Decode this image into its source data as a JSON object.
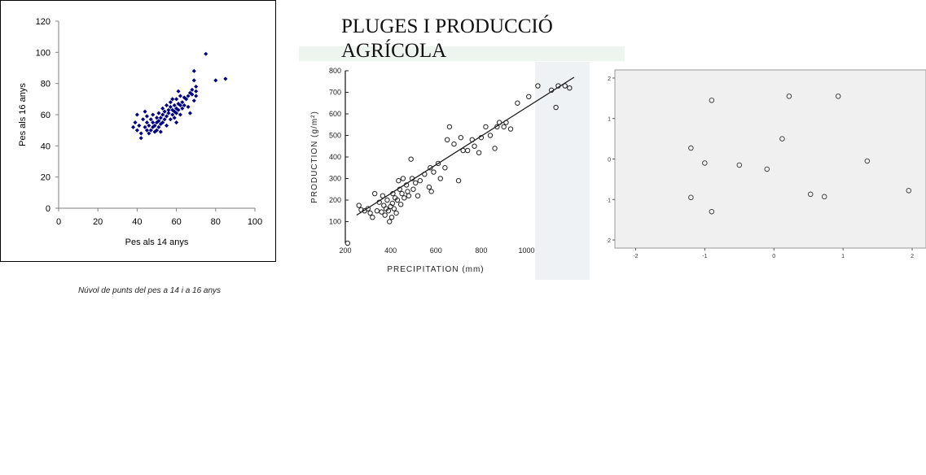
{
  "title": {
    "line1": "PLUGES I PRODUCCIÓ",
    "line2": "AGRÍCOLA"
  },
  "chart_data": [
    {
      "type": "scatter",
      "xlabel": "Pes als 14 anys",
      "ylabel": "Pes als 16 anys",
      "caption": "Núvol de punts del pes a 14 i a 16 anys",
      "xlim": [
        0,
        100
      ],
      "ylim": [
        0,
        120
      ],
      "xticks": [
        "0",
        "20",
        "40",
        "60",
        "80",
        "100"
      ],
      "yticks": [
        "0",
        "20",
        "40",
        "60",
        "80",
        "100",
        "120"
      ],
      "marker_color": "#000080",
      "points": [
        [
          38,
          52
        ],
        [
          39,
          55
        ],
        [
          40,
          50
        ],
        [
          40,
          60
        ],
        [
          41,
          53
        ],
        [
          42,
          45
        ],
        [
          42,
          48
        ],
        [
          43,
          57
        ],
        [
          44,
          52
        ],
        [
          44,
          62
        ],
        [
          45,
          50
        ],
        [
          45,
          55
        ],
        [
          45,
          59
        ],
        [
          46,
          48
        ],
        [
          46,
          53
        ],
        [
          47,
          50
        ],
        [
          47,
          57
        ],
        [
          48,
          52
        ],
        [
          48,
          55
        ],
        [
          48,
          60
        ],
        [
          49,
          49
        ],
        [
          49,
          53
        ],
        [
          50,
          50
        ],
        [
          50,
          55
        ],
        [
          50,
          58
        ],
        [
          51,
          52
        ],
        [
          51,
          56
        ],
        [
          51,
          61
        ],
        [
          52,
          49
        ],
        [
          52,
          54
        ],
        [
          52,
          58
        ],
        [
          53,
          55
        ],
        [
          53,
          60
        ],
        [
          53,
          64
        ],
        [
          54,
          57
        ],
        [
          54,
          62
        ],
        [
          55,
          53
        ],
        [
          55,
          59
        ],
        [
          55,
          66
        ],
        [
          56,
          61
        ],
        [
          56,
          63
        ],
        [
          57,
          57
        ],
        [
          57,
          65
        ],
        [
          57,
          68
        ],
        [
          58,
          60
        ],
        [
          58,
          63
        ],
        [
          58,
          70
        ],
        [
          59,
          58
        ],
        [
          59,
          62
        ],
        [
          59,
          66
        ],
        [
          60,
          55
        ],
        [
          60,
          61
        ],
        [
          60,
          64
        ],
        [
          60,
          70
        ],
        [
          61,
          63
        ],
        [
          61,
          67
        ],
        [
          61,
          75
        ],
        [
          62,
          60
        ],
        [
          62,
          66
        ],
        [
          62,
          72
        ],
        [
          63,
          64
        ],
        [
          63,
          68
        ],
        [
          64,
          66
        ],
        [
          64,
          71
        ],
        [
          65,
          70
        ],
        [
          66,
          65
        ],
        [
          66,
          72
        ],
        [
          67,
          61
        ],
        [
          67,
          74
        ],
        [
          68,
          73
        ],
        [
          68,
          76
        ],
        [
          69,
          69
        ],
        [
          69,
          82
        ],
        [
          70,
          75
        ],
        [
          70,
          78
        ],
        [
          69,
          88
        ],
        [
          75,
          99
        ],
        [
          80,
          82
        ],
        [
          85,
          83
        ],
        [
          70,
          72
        ]
      ]
    },
    {
      "type": "scatter",
      "xlabel": "PRECIPITATION (mm)",
      "ylabel": "PRODUCTION (g/m²)",
      "xlim": [
        200,
        1250
      ],
      "ylim": [
        0,
        800
      ],
      "xticks": [
        "200",
        "400",
        "600",
        "800",
        "1000"
      ],
      "yticks": [
        "100",
        "200",
        "300",
        "400",
        "500",
        "600",
        "700",
        "800"
      ],
      "trendline": [
        [
          250,
          130
        ],
        [
          1210,
          770
        ]
      ],
      "points": [
        [
          260,
          175
        ],
        [
          270,
          155
        ],
        [
          285,
          150
        ],
        [
          300,
          160
        ],
        [
          310,
          140
        ],
        [
          320,
          120
        ],
        [
          330,
          230
        ],
        [
          340,
          150
        ],
        [
          350,
          190
        ],
        [
          360,
          145
        ],
        [
          365,
          220
        ],
        [
          370,
          175
        ],
        [
          375,
          130
        ],
        [
          380,
          160
        ],
        [
          385,
          200
        ],
        [
          390,
          150
        ],
        [
          395,
          100
        ],
        [
          400,
          170
        ],
        [
          405,
          120
        ],
        [
          408,
          185
        ],
        [
          410,
          230
        ],
        [
          415,
          160
        ],
        [
          420,
          210
        ],
        [
          425,
          140
        ],
        [
          430,
          200
        ],
        [
          435,
          290
        ],
        [
          440,
          250
        ],
        [
          445,
          180
        ],
        [
          450,
          230
        ],
        [
          455,
          300
        ],
        [
          460,
          210
        ],
        [
          470,
          270
        ],
        [
          475,
          240
        ],
        [
          480,
          220
        ],
        [
          490,
          390
        ],
        [
          495,
          300
        ],
        [
          500,
          250
        ],
        [
          510,
          280
        ],
        [
          520,
          220
        ],
        [
          530,
          290
        ],
        [
          550,
          320
        ],
        [
          570,
          260
        ],
        [
          575,
          350
        ],
        [
          580,
          240
        ],
        [
          590,
          330
        ],
        [
          610,
          370
        ],
        [
          620,
          300
        ],
        [
          640,
          350
        ],
        [
          650,
          480
        ],
        [
          660,
          540
        ],
        [
          680,
          460
        ],
        [
          700,
          290
        ],
        [
          710,
          490
        ],
        [
          720,
          430
        ],
        [
          740,
          430
        ],
        [
          760,
          480
        ],
        [
          770,
          450
        ],
        [
          790,
          420
        ],
        [
          800,
          490
        ],
        [
          820,
          540
        ],
        [
          840,
          500
        ],
        [
          860,
          440
        ],
        [
          870,
          540
        ],
        [
          880,
          560
        ],
        [
          900,
          540
        ],
        [
          910,
          560
        ],
        [
          930,
          530
        ],
        [
          960,
          650
        ],
        [
          1010,
          680
        ],
        [
          1050,
          730
        ],
        [
          1110,
          710
        ],
        [
          1130,
          630
        ],
        [
          1140,
          730
        ],
        [
          1170,
          730
        ],
        [
          1190,
          720
        ],
        [
          210,
          0
        ]
      ]
    },
    {
      "type": "scatter",
      "xlim": [
        -2.3,
        2.2
      ],
      "ylim": [
        -2.2,
        2.2
      ],
      "xticks": [
        "-2",
        "-1",
        "0",
        "1",
        "2"
      ],
      "yticks": [
        "2",
        "1",
        "0",
        "-1",
        "-2"
      ],
      "points": [
        [
          -1.2,
          0.27
        ],
        [
          -1.2,
          -0.95
        ],
        [
          -1.0,
          -0.1
        ],
        [
          -0.9,
          1.45
        ],
        [
          -0.9,
          -1.3
        ],
        [
          -0.5,
          -0.15
        ],
        [
          -0.1,
          -0.25
        ],
        [
          0.12,
          0.5
        ],
        [
          0.22,
          1.55
        ],
        [
          0.53,
          -0.87
        ],
        [
          0.73,
          -0.93
        ],
        [
          0.93,
          1.55
        ],
        [
          1.35,
          -0.05
        ],
        [
          1.95,
          -0.78
        ]
      ]
    }
  ]
}
